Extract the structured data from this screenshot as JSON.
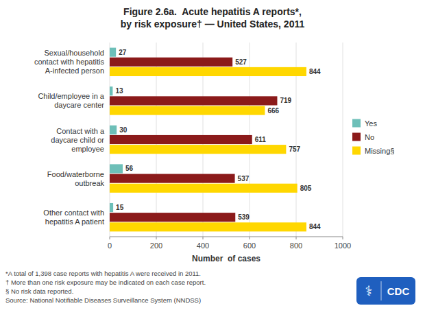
{
  "chart_data": {
    "type": "bar",
    "orientation": "horizontal",
    "title": "Figure 2.6a.  Acute hepatitis A reports*,\nby risk exposure† — United States, 2011",
    "categories": [
      "Sexual/household\ncontact with hepatitis\nA-infected person",
      "Child/employee in a\ndaycare center",
      "Contact with a\ndaycare child or\nemployee",
      "Food/waterborne\noutbreak",
      "Other contact with\nhepatitis A patient"
    ],
    "series": [
      {
        "name": "Yes",
        "color": "#6dbfb8",
        "values": [
          27,
          13,
          30,
          56,
          15
        ]
      },
      {
        "name": "No",
        "color": "#8b1a1a",
        "values": [
          527,
          719,
          611,
          537,
          539
        ]
      },
      {
        "name": "Missing§",
        "color": "#ffd700",
        "values": [
          844,
          666,
          757,
          805,
          844
        ]
      }
    ],
    "x_label": "Number  of cases",
    "xlim": [
      0,
      1000
    ],
    "xticks": [
      0,
      200,
      400,
      600,
      800,
      1000
    ],
    "grid": true,
    "legend": "right",
    "data_labels": true,
    "annotations": [
      "*A total of 1,398 case reports with hepatitis A were received in 2011.",
      "† More than one risk exposure may be indicated on each case report.",
      "§ No risk data reported.",
      "Source: National Notifiable Diseases Surveillance System (NNDSS)",
      "⚕",
      "CDC"
    ]
  }
}
